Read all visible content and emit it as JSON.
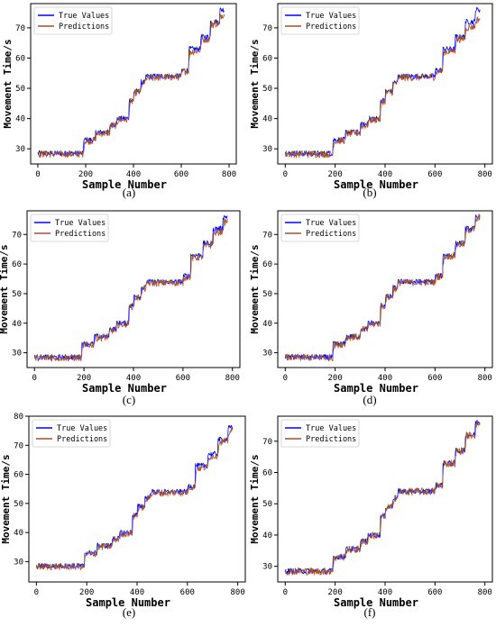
{
  "chart_data": [
    {
      "type": "line",
      "panel_label": "(a)",
      "xlabel": "Sample Number",
      "ylabel": "Movement Time/s",
      "xlim": [
        -30,
        830
      ],
      "ylim": [
        25,
        78
      ],
      "xticks": [
        0,
        200,
        400,
        600,
        800
      ],
      "yticks": [
        30,
        40,
        50,
        60,
        70
      ],
      "legend_position": "top-left",
      "series": [
        {
          "name": "True Values",
          "color": "#0000ff",
          "x": [
            0,
            190,
            190,
            240,
            240,
            300,
            300,
            330,
            330,
            380,
            380,
            400,
            400,
            430,
            430,
            450,
            450,
            600,
            600,
            630,
            630,
            680,
            680,
            720,
            720,
            760,
            760,
            780
          ],
          "values": [
            28.5,
            28.5,
            33,
            33,
            35.5,
            35.5,
            38,
            38,
            40,
            40,
            46,
            46,
            49,
            49,
            52,
            52,
            54,
            54,
            56,
            56,
            63,
            63,
            67,
            67,
            72,
            72,
            76,
            76
          ]
        },
        {
          "name": "Predictions",
          "color": "#a0522d",
          "x": [
            0,
            190,
            195,
            240,
            245,
            300,
            305,
            330,
            335,
            380,
            385,
            400,
            405,
            430,
            435,
            450,
            455,
            600,
            605,
            630,
            635,
            680,
            685,
            720,
            725,
            760,
            765,
            780
          ],
          "values": [
            28.3,
            28.3,
            32.5,
            32.8,
            35,
            35.3,
            37.5,
            37.8,
            39.5,
            39.8,
            45.5,
            45.8,
            48.5,
            48.8,
            51.5,
            51.8,
            53.5,
            53.8,
            55.5,
            55.8,
            62,
            62.5,
            66,
            66.5,
            71,
            71.5,
            74,
            74.5
          ]
        }
      ]
    },
    {
      "type": "line",
      "panel_label": "(b)",
      "xlabel": "Sample Number",
      "ylabel": "Movement Time/s",
      "xlim": [
        -30,
        830
      ],
      "ylim": [
        25,
        78
      ],
      "xticks": [
        0,
        200,
        400,
        600,
        800
      ],
      "yticks": [
        30,
        40,
        50,
        60,
        70
      ],
      "legend_position": "top-left",
      "series": [
        {
          "name": "True Values",
          "color": "#0000ff",
          "x": [
            0,
            190,
            190,
            240,
            240,
            300,
            300,
            330,
            330,
            380,
            380,
            400,
            400,
            430,
            430,
            450,
            450,
            600,
            600,
            630,
            630,
            680,
            680,
            720,
            720,
            760,
            760,
            780
          ],
          "values": [
            28.5,
            28.5,
            33,
            33,
            35.5,
            35.5,
            38,
            38,
            40,
            40,
            46,
            46,
            49,
            49,
            52,
            52,
            54,
            54,
            56,
            56,
            63,
            63,
            67,
            67,
            72,
            72,
            76,
            76
          ]
        },
        {
          "name": "Predictions",
          "color": "#a0522d",
          "x": [
            0,
            190,
            195,
            240,
            245,
            300,
            305,
            330,
            335,
            380,
            385,
            400,
            405,
            430,
            435,
            450,
            455,
            600,
            605,
            630,
            635,
            680,
            685,
            720,
            725,
            760,
            765,
            780
          ],
          "values": [
            28.3,
            28.3,
            32.5,
            32.8,
            35,
            35.3,
            37.5,
            37.8,
            39.5,
            39.8,
            45.5,
            45.8,
            48.5,
            48.8,
            51.5,
            51.8,
            53.5,
            53.8,
            55.5,
            55.8,
            62,
            62.5,
            66,
            66.5,
            70,
            70.5,
            72.5,
            73
          ]
        }
      ]
    },
    {
      "type": "line",
      "panel_label": "(c)",
      "xlabel": "Sample Number",
      "ylabel": "Movement Time/s",
      "xlim": [
        -30,
        830
      ],
      "ylim": [
        25,
        78
      ],
      "xticks": [
        0,
        200,
        400,
        600,
        800
      ],
      "yticks": [
        30,
        40,
        50,
        60,
        70
      ],
      "legend_position": "top-left",
      "series": [
        {
          "name": "True Values",
          "color": "#0000ff",
          "x": [
            0,
            190,
            190,
            240,
            240,
            300,
            300,
            330,
            330,
            380,
            380,
            400,
            400,
            430,
            430,
            450,
            450,
            600,
            600,
            630,
            630,
            680,
            680,
            720,
            720,
            760,
            760,
            780
          ],
          "values": [
            28.5,
            28.5,
            33,
            33,
            35.5,
            35.5,
            38,
            38,
            40,
            40,
            46,
            46,
            49,
            49,
            52,
            52,
            54,
            54,
            56,
            56,
            63,
            63,
            67,
            67,
            72,
            72,
            76,
            76
          ]
        },
        {
          "name": "Predictions",
          "color": "#a0522d",
          "x": [
            0,
            190,
            195,
            240,
            245,
            300,
            305,
            330,
            335,
            380,
            385,
            400,
            405,
            430,
            435,
            450,
            455,
            600,
            605,
            630,
            635,
            680,
            685,
            720,
            725,
            760,
            765,
            780
          ],
          "values": [
            28.3,
            28.3,
            32.5,
            32.8,
            35,
            35.3,
            37.5,
            37.8,
            39.5,
            39.8,
            45.5,
            45.8,
            48.5,
            48.8,
            51.5,
            51.8,
            53.5,
            53.8,
            55.5,
            55.8,
            62,
            62.5,
            66,
            66.5,
            70.5,
            71,
            74,
            74.5
          ]
        }
      ]
    },
    {
      "type": "line",
      "panel_label": "(d)",
      "xlabel": "Sample Number",
      "ylabel": "Movement Time/s",
      "xlim": [
        -30,
        830
      ],
      "ylim": [
        25,
        78
      ],
      "xticks": [
        0,
        200,
        400,
        600,
        800
      ],
      "yticks": [
        30,
        40,
        50,
        60,
        70
      ],
      "legend_position": "top-left",
      "series": [
        {
          "name": "True Values",
          "color": "#0000ff",
          "x": [
            0,
            190,
            190,
            240,
            240,
            300,
            300,
            330,
            330,
            380,
            380,
            400,
            400,
            430,
            430,
            450,
            450,
            600,
            600,
            630,
            630,
            680,
            680,
            720,
            720,
            760,
            760,
            780
          ],
          "values": [
            28.5,
            28.5,
            33,
            33,
            35.5,
            35.5,
            38,
            38,
            40,
            40,
            46,
            46,
            49,
            49,
            52,
            52,
            54,
            54,
            56,
            56,
            63,
            63,
            67,
            67,
            72,
            72,
            76,
            76
          ]
        },
        {
          "name": "Predictions",
          "color": "#a0522d",
          "x": [
            0,
            190,
            195,
            240,
            245,
            300,
            305,
            330,
            335,
            380,
            385,
            400,
            405,
            430,
            435,
            450,
            455,
            600,
            605,
            630,
            635,
            680,
            685,
            720,
            725,
            760,
            765,
            780
          ],
          "values": [
            28.4,
            28.4,
            32.7,
            32.9,
            35.2,
            35.4,
            37.7,
            37.9,
            39.7,
            39.9,
            45.7,
            45.9,
            48.7,
            48.9,
            51.7,
            51.9,
            53.7,
            53.9,
            55.7,
            55.9,
            62.5,
            62.8,
            66.5,
            66.8,
            71.5,
            71.8,
            75,
            75.5
          ]
        }
      ]
    },
    {
      "type": "line",
      "panel_label": "(e)",
      "xlabel": "Sample Number",
      "ylabel": "Movement Time/s",
      "xlim": [
        -30,
        830
      ],
      "ylim": [
        23,
        80
      ],
      "xticks": [
        0,
        200,
        400,
        600,
        800
      ],
      "yticks": [
        30,
        40,
        50,
        60,
        70,
        80
      ],
      "legend_position": "top-left",
      "series": [
        {
          "name": "True Values",
          "color": "#0000ff",
          "x": [
            0,
            190,
            190,
            240,
            240,
            300,
            300,
            330,
            330,
            380,
            380,
            400,
            400,
            430,
            430,
            450,
            450,
            600,
            600,
            630,
            630,
            680,
            680,
            720,
            720,
            760,
            760,
            780
          ],
          "values": [
            28.5,
            28.5,
            33,
            33,
            35.5,
            35.5,
            38,
            38,
            40,
            40,
            46,
            46,
            49,
            49,
            52,
            52,
            54,
            54,
            56,
            56,
            63,
            63,
            67,
            67,
            72,
            72,
            76,
            76
          ]
        },
        {
          "name": "Predictions",
          "color": "#a0522d",
          "x": [
            0,
            190,
            195,
            240,
            245,
            300,
            305,
            330,
            335,
            380,
            385,
            400,
            405,
            430,
            435,
            450,
            455,
            600,
            605,
            630,
            635,
            680,
            685,
            720,
            725,
            760,
            765,
            780
          ],
          "values": [
            28.3,
            28.3,
            32.5,
            32.8,
            35,
            35.3,
            37.5,
            37.8,
            39.5,
            39.8,
            45.5,
            45.8,
            48.5,
            48.8,
            51.5,
            51.8,
            53.5,
            53.8,
            55.5,
            55.8,
            62,
            62.5,
            66,
            66.5,
            71,
            71.5,
            74.5,
            75
          ]
        }
      ]
    },
    {
      "type": "line",
      "panel_label": "(f)",
      "xlabel": "Sample Number",
      "ylabel": "Movement Time/s",
      "xlim": [
        -30,
        830
      ],
      "ylim": [
        25,
        78
      ],
      "xticks": [
        0,
        200,
        400,
        600,
        800
      ],
      "yticks": [
        30,
        40,
        50,
        60,
        70
      ],
      "legend_position": "top-left",
      "series": [
        {
          "name": "True Values",
          "color": "#0000ff",
          "x": [
            0,
            190,
            190,
            240,
            240,
            300,
            300,
            330,
            330,
            380,
            380,
            400,
            400,
            430,
            430,
            450,
            450,
            600,
            600,
            630,
            630,
            680,
            680,
            720,
            720,
            760,
            760,
            780
          ],
          "values": [
            28.5,
            28.5,
            33,
            33,
            35.5,
            35.5,
            38,
            38,
            40,
            40,
            46,
            46,
            49,
            49,
            52,
            52,
            54,
            54,
            56,
            56,
            63,
            63,
            67,
            67,
            72,
            72,
            76,
            76
          ]
        },
        {
          "name": "Predictions",
          "color": "#a0522d",
          "x": [
            0,
            190,
            195,
            240,
            245,
            300,
            305,
            330,
            335,
            380,
            385,
            400,
            405,
            430,
            435,
            450,
            455,
            600,
            605,
            630,
            635,
            680,
            685,
            720,
            725,
            760,
            765,
            780
          ],
          "values": [
            28.4,
            28.4,
            32.8,
            33,
            35.3,
            35.5,
            37.8,
            38,
            39.8,
            40,
            45.8,
            46,
            48.8,
            49,
            51.8,
            52,
            53.8,
            54,
            55.8,
            56,
            62.8,
            63,
            66.8,
            67,
            71.8,
            72,
            75.5,
            75.8
          ]
        }
      ]
    }
  ]
}
